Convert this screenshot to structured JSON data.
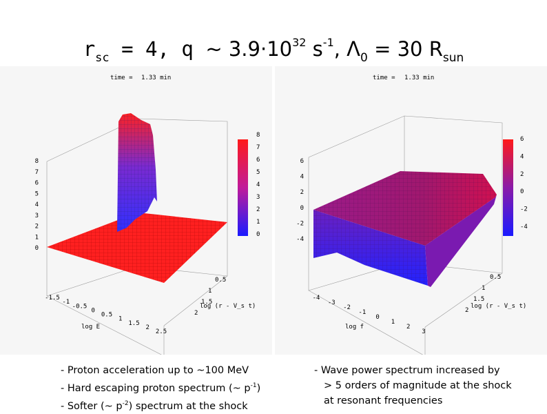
{
  "title": {
    "r_symbol": "r",
    "r_sub": "sc",
    "r_eq": " = 4, q ",
    "tilde": "~ 3.9·10",
    "q_exp": "32",
    "s_unit": " s",
    "s_exp": "-1",
    "lambda_eq": ", Λ",
    "lambda_sub": "0",
    "lambda_val": " = 30 R",
    "r_sun_sub": "sun"
  },
  "left_plot": {
    "time_label": "time =",
    "time_value": "1.33 min",
    "z_ticks": [
      "0",
      "1",
      "2",
      "3",
      "4",
      "5",
      "6",
      "7",
      "8"
    ],
    "colorbar_ticks": [
      "0",
      "1",
      "2",
      "3",
      "4",
      "5",
      "6",
      "7",
      "8"
    ],
    "x_ticks": [
      "-1.5",
      "-1",
      "-0.5",
      "0",
      "0.5",
      "1",
      "1.5",
      "2",
      "2.5"
    ],
    "x_label": "log E",
    "y_ticks": [
      "0.5",
      "1",
      "1.5",
      "2"
    ],
    "y_label": "log (r - V_s t)",
    "colors": {
      "high": "#ff1a1a",
      "low": "#1a1aff",
      "mesh": "#7a0000"
    }
  },
  "right_plot": {
    "time_label": "time =",
    "time_value": "1.33 min",
    "z_ticks": [
      "-4",
      "-2",
      "0",
      "2",
      "4",
      "6"
    ],
    "colorbar_ticks": [
      "-4",
      "-2",
      "0",
      "2",
      "4",
      "6"
    ],
    "x_ticks": [
      "-4",
      "-3",
      "-2",
      "-1",
      "0",
      "1",
      "2",
      "3"
    ],
    "x_label": "log f",
    "y_ticks": [
      "0.5",
      "1",
      "1.5",
      "2"
    ],
    "y_label": "log (r - V_s t)",
    "colors": {
      "high": "#d0105a",
      "mid": "#8a1a9a",
      "low": "#1a1aff"
    }
  },
  "bullets_left": [
    {
      "pre": "- Proton acceleration up to ~100 MeV"
    },
    {
      "pre": "- Hard escaping proton spectrum (~ p",
      "sup": "-1",
      "post": ")"
    },
    {
      "pre": "- Softer (~ p",
      "sup": "-2",
      "post": ") spectrum at the shock"
    }
  ],
  "bullets_right": [
    "- Wave power spectrum increased by",
    "> 5 orders of magnitude at the shock",
    "at resonant frequencies"
  ]
}
